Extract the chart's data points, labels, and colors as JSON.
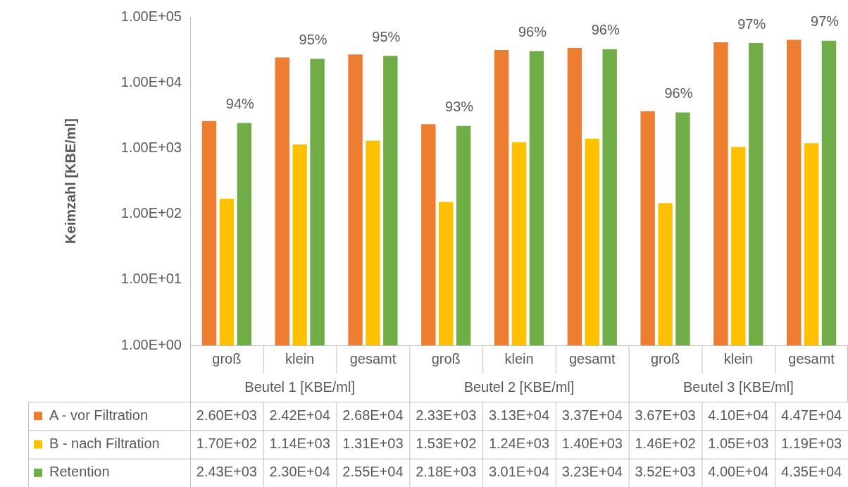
{
  "chart_data": {
    "type": "bar",
    "ylabel": "Keimzahl [KBE/ml]",
    "categories": [
      "groß",
      "klein",
      "gesamt",
      "groß",
      "klein",
      "gesamt",
      "groß",
      "klein",
      "gesamt"
    ],
    "annotations": [
      "Beutel 1 [KBE/ml]",
      "Beutel 2 [KBE/ml]",
      "Beutel 3 [KBE/ml]",
      {
        "text": "94%",
        "y": 2430
      },
      {
        "text": "95%",
        "y": 23000
      },
      {
        "text": "95%",
        "y": 25500
      },
      {
        "text": "93%",
        "y": 2180
      },
      {
        "text": "96%",
        "y": 30100
      },
      {
        "text": "96%",
        "y": 32300
      },
      {
        "text": "96%",
        "y": 3520
      },
      {
        "text": "97%",
        "y": 40000
      },
      {
        "text": "97%",
        "y": 43500
      }
    ],
    "series": [
      {
        "name": "A - vor Filtration",
        "color": "#ed7d31",
        "values": [
          2600,
          24200,
          26800,
          2330,
          31300,
          33700,
          3670,
          41000,
          44700
        ],
        "value_labels": [
          "2.60E+03",
          "2.42E+04",
          "2.68E+04",
          "2.33E+03",
          "3.13E+04",
          "3.37E+04",
          "3.67E+03",
          "4.10E+04",
          "4.47E+04"
        ]
      },
      {
        "name": "B - nach Filtration",
        "color": "#ffc000",
        "values": [
          170,
          1140,
          1310,
          153,
          1240,
          1400,
          146,
          1050,
          1190
        ],
        "value_labels": [
          "1.70E+02",
          "1.14E+03",
          "1.31E+03",
          "1.53E+02",
          "1.24E+03",
          "1.40E+03",
          "1.46E+02",
          "1.05E+03",
          "1.19E+03"
        ]
      },
      {
        "name": "Retention",
        "color": "#70ad47",
        "values": [
          2430,
          23000,
          25500,
          2180,
          30100,
          32300,
          3520,
          40000,
          43500
        ],
        "value_labels": [
          "2.43E+03",
          "2.30E+04",
          "2.55E+04",
          "2.18E+03",
          "3.01E+04",
          "3.23E+04",
          "3.52E+03",
          "4.00E+04",
          "4.35E+04"
        ]
      }
    ],
    "log": true,
    "ylim": [
      1,
      100000
    ],
    "yticks": [
      {
        "value": 1,
        "label": "1.00E+00"
      },
      {
        "value": 10,
        "label": "1.00E+01"
      },
      {
        "value": 100,
        "label": "1.00E+02"
      },
      {
        "value": 1000,
        "label": "1.00E+03"
      },
      {
        "value": 10000,
        "label": "1.00E+04"
      },
      {
        "value": 100000,
        "label": "1.00E+05"
      }
    ],
    "grid": false,
    "legend": "bottom left"
  }
}
